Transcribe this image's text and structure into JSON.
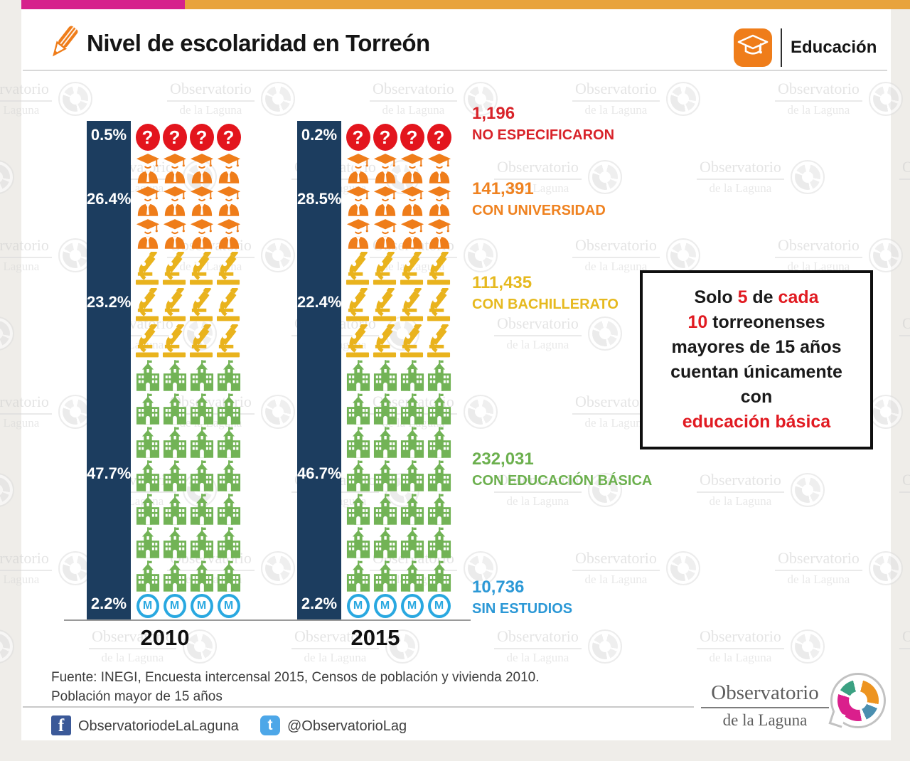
{
  "header": {
    "title": "Nivel de escolaridad en Torreón",
    "category": "Educación"
  },
  "chart_data": {
    "type": "bar",
    "title": "Nivel de escolaridad en Torreón",
    "categories": [
      "2010",
      "2015"
    ],
    "unit": "%",
    "series": [
      {
        "name": "NO ESPECIFICARON",
        "values": [
          0.5,
          0.2
        ],
        "count": "1,196",
        "color": "#d8232a"
      },
      {
        "name": "CON UNIVERSIDAD",
        "values": [
          26.4,
          28.5
        ],
        "count": "141,391",
        "color": "#ef8220"
      },
      {
        "name": "CON BACHILLERATO",
        "values": [
          23.2,
          22.4
        ],
        "count": "111,435",
        "color": "#e6b91f"
      },
      {
        "name": "CON EDUCACIÓN BÁSICA",
        "values": [
          47.7,
          46.7
        ],
        "count": "232,031",
        "color": "#6cb04e"
      },
      {
        "name": "SIN ESTUDIOS",
        "values": [
          2.2,
          2.2
        ],
        "count": "10,736",
        "color": "#2b98d6"
      }
    ],
    "legend_position": "right",
    "grid": false
  },
  "bars": [
    {
      "year": "2010",
      "percents": [
        "0.5%",
        "26.4%",
        "23.2%",
        "47.7%",
        "2.2%"
      ]
    },
    {
      "year": "2015",
      "percents": [
        "0.2%",
        "28.5%",
        "22.4%",
        "46.7%",
        "2.2%"
      ]
    }
  ],
  "legend": [
    {
      "count": "1,196",
      "label": "NO ESPECIFICARON",
      "color": "#d8232a"
    },
    {
      "count": "141,391",
      "label": "CON UNIVERSIDAD",
      "color": "#ef8220"
    },
    {
      "count": "111,435",
      "label": "CON BACHILLERATO",
      "color": "#e6b91f"
    },
    {
      "count": "232,031",
      "label": "CON EDUCACIÓN BÁSICA",
      "color": "#6cb04e"
    },
    {
      "count": "10,736",
      "label": "SIN ESTUDIOS",
      "color": "#2b98d6"
    }
  ],
  "pictogram": {
    "columns": 4,
    "rows": [
      {
        "icon": "question-icon",
        "rows": 1
      },
      {
        "icon": "graduate-icon",
        "rows": 3
      },
      {
        "icon": "microscope-icon",
        "rows": 3
      },
      {
        "icon": "school-icon",
        "rows": 7
      },
      {
        "icon": "no-studies-icon",
        "rows": 1
      }
    ]
  },
  "callout": {
    "lines": [
      [
        {
          "t": "Solo ",
          "red": false
        },
        {
          "t": "5",
          "red": true
        },
        {
          "t": " de ",
          "red": false
        },
        {
          "t": "cada",
          "red": true
        }
      ],
      [
        {
          "t": "10",
          "red": true
        },
        {
          "t": " torreonenses",
          "red": false
        }
      ],
      [
        {
          "t": "mayores de 15 años",
          "red": false
        }
      ],
      [
        {
          "t": "cuentan únicamente con",
          "red": false
        }
      ],
      [
        {
          "t": "educación básica",
          "red": true
        }
      ]
    ]
  },
  "footer": {
    "source_line1": "Fuente: INEGI, Encuesta intercensal 2015, Censos de población y vivienda 2010.",
    "source_line2": "Población mayor de 15 años",
    "facebook": "ObservatoriodeLaLaguna",
    "twitter": "@ObservatorioLag"
  },
  "logo": {
    "line1": "Observatorio",
    "line2": "de la Laguna"
  },
  "watermark": {
    "line1": "Observatorio",
    "line2": "de la Laguna"
  },
  "icons": {
    "question_glyph": "?",
    "no_studies_glyph": "M",
    "facebook_glyph": "f",
    "twitter_glyph": "t"
  },
  "colors": {
    "stripe_pink": "#d6228c",
    "stripe_orange": "#e8a33c",
    "bar_navy": "#1c3d5f",
    "accent_orange": "#ef7d1a",
    "callout_red": "#e11b22"
  }
}
